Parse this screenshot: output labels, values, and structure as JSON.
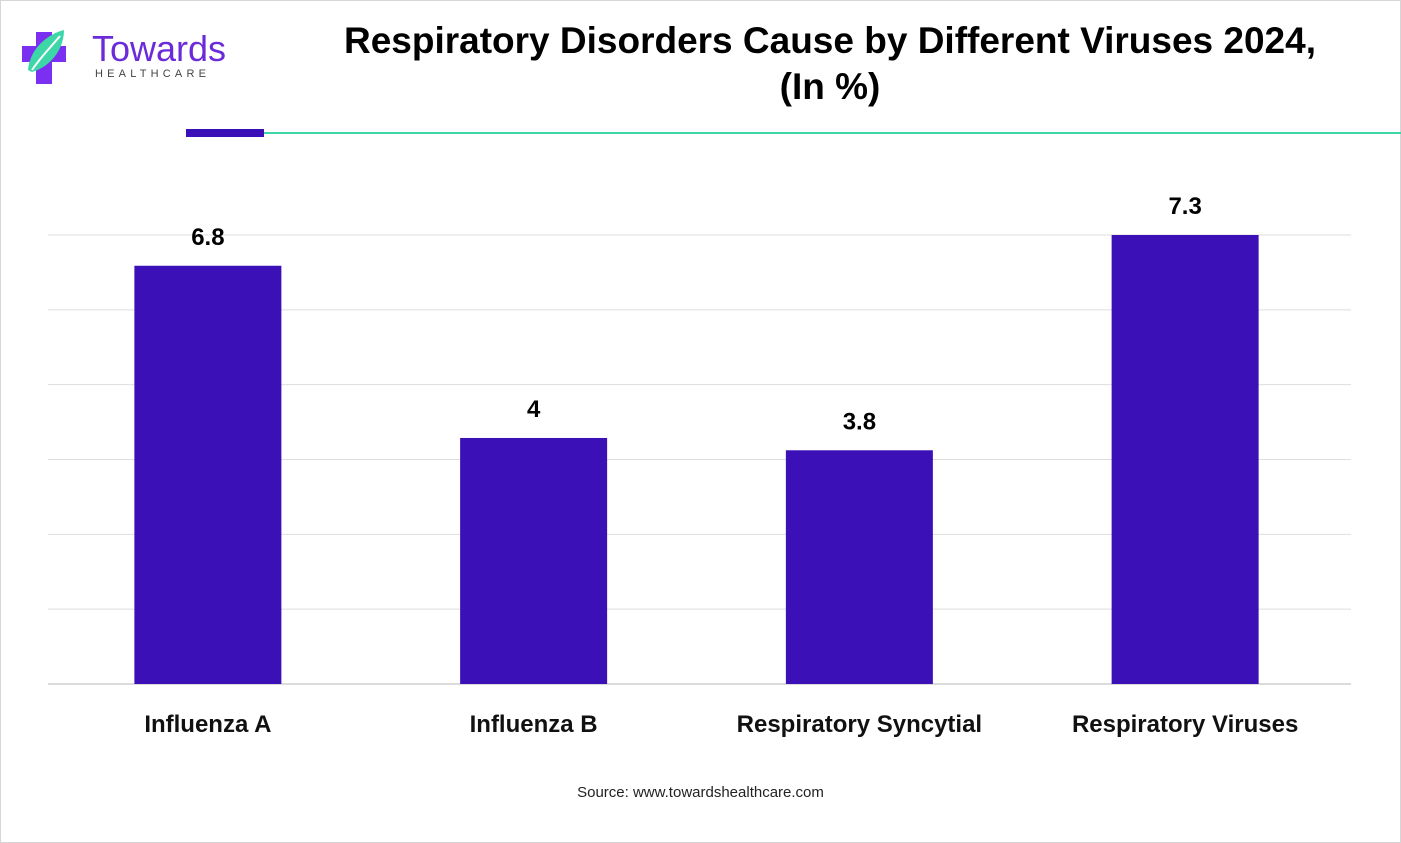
{
  "logo": {
    "name": "Towards",
    "tagline": "HEALTHCARE",
    "colors": {
      "primary": "#6c2bd9",
      "accent": "#3dd6a6"
    }
  },
  "header": {
    "title_line1": "Respiratory Disorders Cause by Different Viruses 2024,",
    "title_line2": "(In %)"
  },
  "footer": {
    "source": "Source: www.towardshealthcare.com"
  },
  "chart_data": {
    "type": "bar",
    "title": "Respiratory Disorders Cause by Different Viruses 2024, (In %)",
    "categories": [
      "Influenza A",
      "Influenza B",
      "Respiratory Syncytial",
      "Respiratory Viruses"
    ],
    "values": [
      6.8,
      4,
      3.8,
      7.3
    ],
    "value_labels": [
      "6.8",
      "4",
      "3.8",
      "7.3"
    ],
    "ylim": [
      0,
      7.3
    ],
    "grid": true,
    "bar_color": "#3b10b6",
    "legend": "none"
  }
}
